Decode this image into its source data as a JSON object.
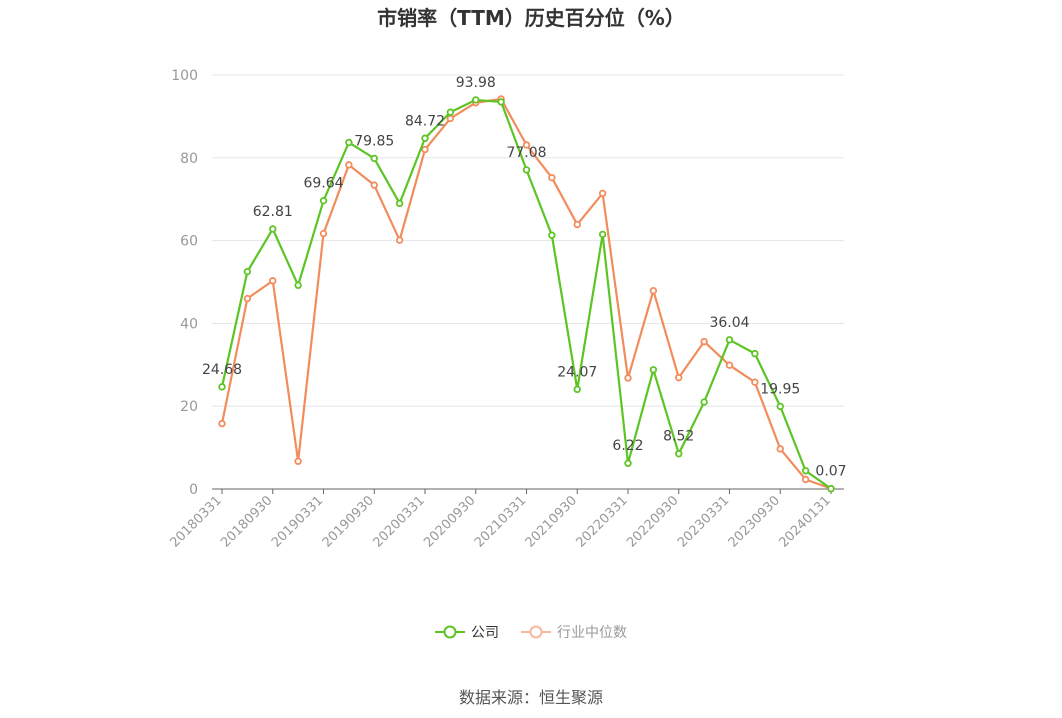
{
  "title": "市销率（TTM）历史百分位（%）",
  "source": "数据来源：恒生聚源",
  "colors": {
    "company": "#5cc524",
    "industry": "#f28c5c",
    "industry_legend": "#f6b79b",
    "grid": "#e3e6ee",
    "axis": "#666666",
    "label": "#999999"
  },
  "legend": {
    "company": "公司",
    "industry": "行业中位数"
  },
  "chart_data": {
    "type": "line",
    "ylim": [
      0,
      100
    ],
    "yticks": [
      0,
      20,
      40,
      60,
      80,
      100
    ],
    "grid": true,
    "legend_position": "bottom",
    "x": [
      "20180331",
      "20180630",
      "20180930",
      "20181231",
      "20190331",
      "20190630",
      "20190930",
      "20191231",
      "20200331",
      "20200630",
      "20200930",
      "20201231",
      "20210331",
      "20210630",
      "20210930",
      "20211231",
      "20220331",
      "20220630",
      "20220930",
      "20221231",
      "20230331",
      "20230630",
      "20230930",
      "20231231",
      "20240131"
    ],
    "xtick_labels": [
      "20180331",
      "20180930",
      "20190331",
      "20190930",
      "20200331",
      "20200930",
      "20210331",
      "20210930",
      "20220331",
      "20220930",
      "20230331",
      "20230930",
      "20240131"
    ],
    "series": [
      {
        "name": "公司",
        "values": [
          24.68,
          52.5,
          62.81,
          49.2,
          69.64,
          83.7,
          79.85,
          69.0,
          84.72,
          91.0,
          93.98,
          93.5,
          77.08,
          61.3,
          24.07,
          61.5,
          6.22,
          28.8,
          8.52,
          21.0,
          36.04,
          32.7,
          19.95,
          4.4,
          0.07
        ],
        "labels": {
          "0": "24.68",
          "2": "62.81",
          "4": "69.64",
          "6": "79.85",
          "8": "84.72",
          "10": "93.98",
          "12": "77.08",
          "14": "24.07",
          "16": "6.22",
          "18": "8.52",
          "20": "36.04",
          "22": "19.95",
          "24": "0.07"
        }
      },
      {
        "name": "行业中位数",
        "values": [
          15.8,
          46.0,
          50.3,
          6.7,
          61.7,
          78.3,
          73.4,
          60.1,
          82.0,
          89.5,
          93.3,
          94.2,
          83.1,
          75.2,
          63.9,
          71.4,
          26.8,
          47.9,
          26.9,
          35.6,
          29.9,
          25.8,
          9.7,
          2.3,
          0.1
        ]
      }
    ]
  }
}
